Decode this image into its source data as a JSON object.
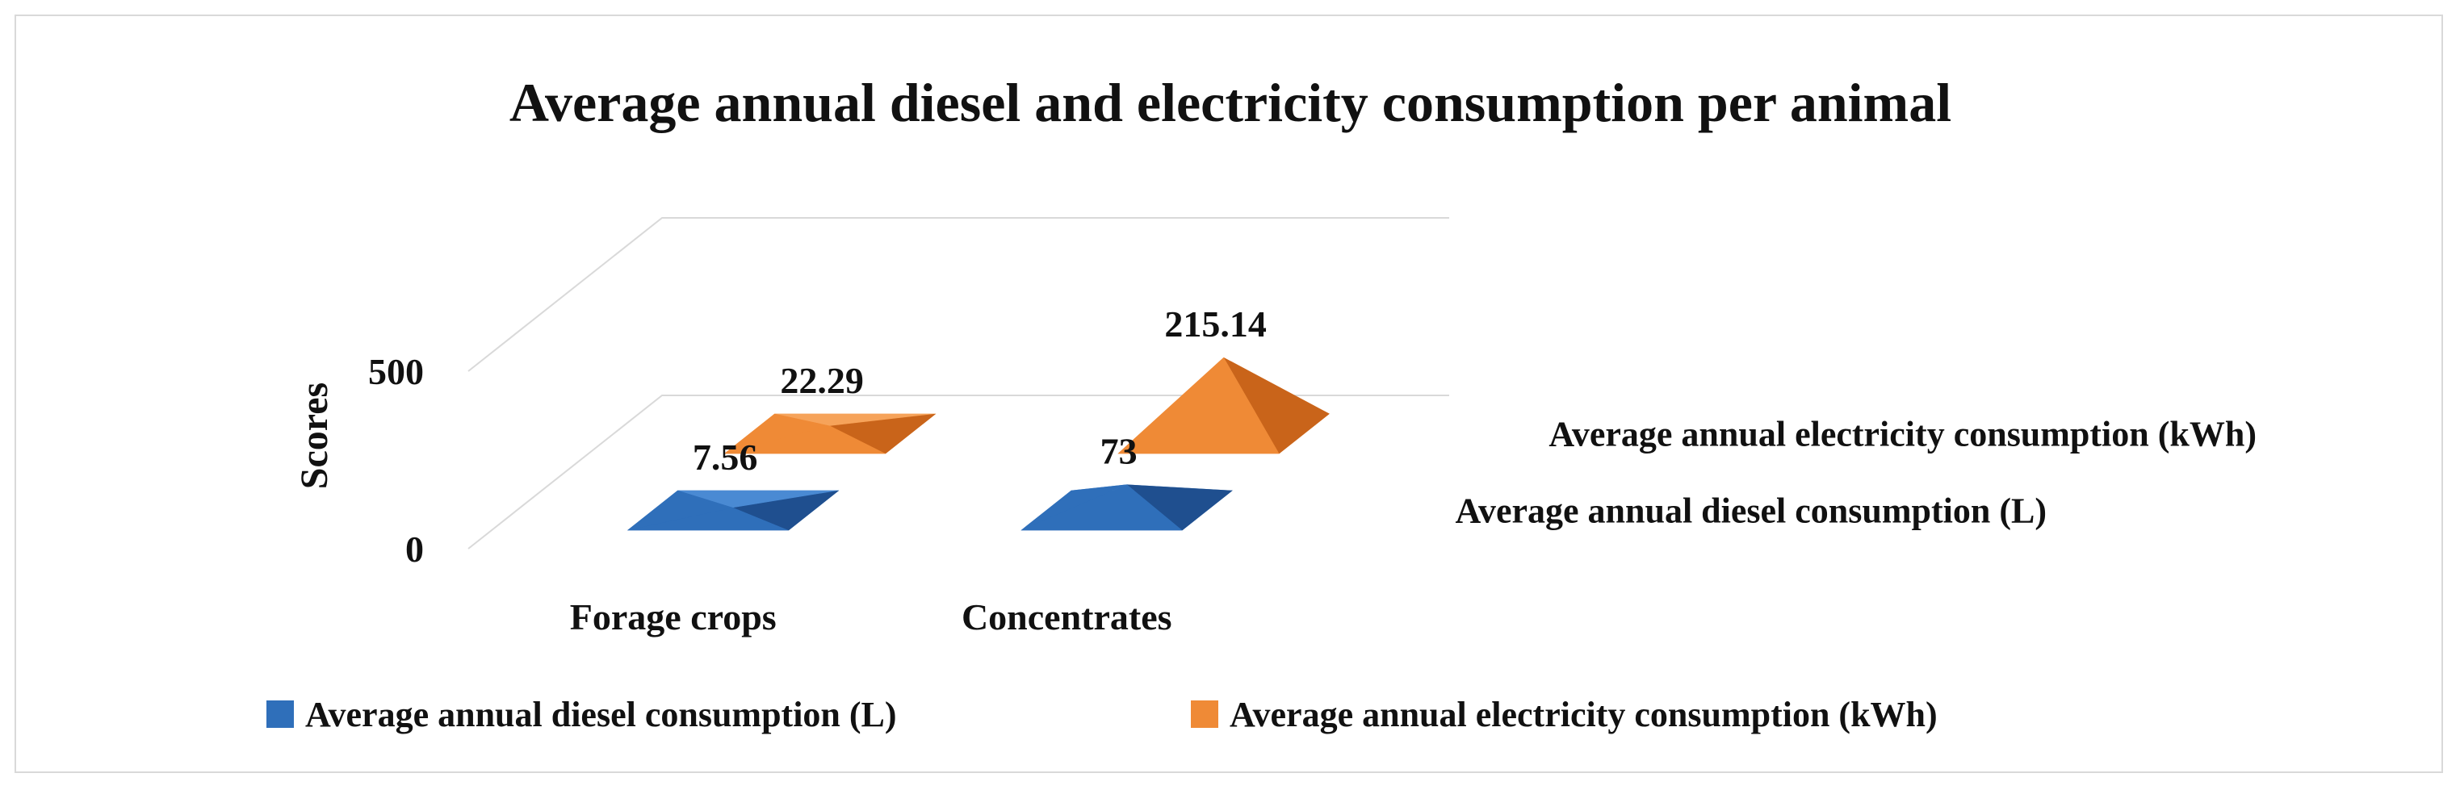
{
  "chart_data": {
    "type": "bar",
    "subtype": "3d-pyramid",
    "title": "Average annual diesel and electricity consumption per animal",
    "xlabel": "",
    "ylabel": "Scores",
    "ylim": [
      0,
      500
    ],
    "yticks": [
      "0",
      "500"
    ],
    "categories": [
      "Forage crops",
      "Concentrates"
    ],
    "series": [
      {
        "name": "Average annual diesel consumption (L)",
        "values": [
          7.56,
          73
        ],
        "labels": [
          "7.56",
          "73"
        ],
        "color": "#2f6fba",
        "color_dark": "#1f4f8f",
        "color_light": "#4a8ad3"
      },
      {
        "name": "Average annual  electricity consumption (kWh)",
        "values": [
          22.29,
          215.14
        ],
        "labels": [
          "22.29",
          "215.14"
        ],
        "color": "#ef8a36",
        "color_dark": "#c9641a",
        "color_light": "#f6a35a"
      }
    ],
    "legend": "bottom",
    "grid": true
  }
}
